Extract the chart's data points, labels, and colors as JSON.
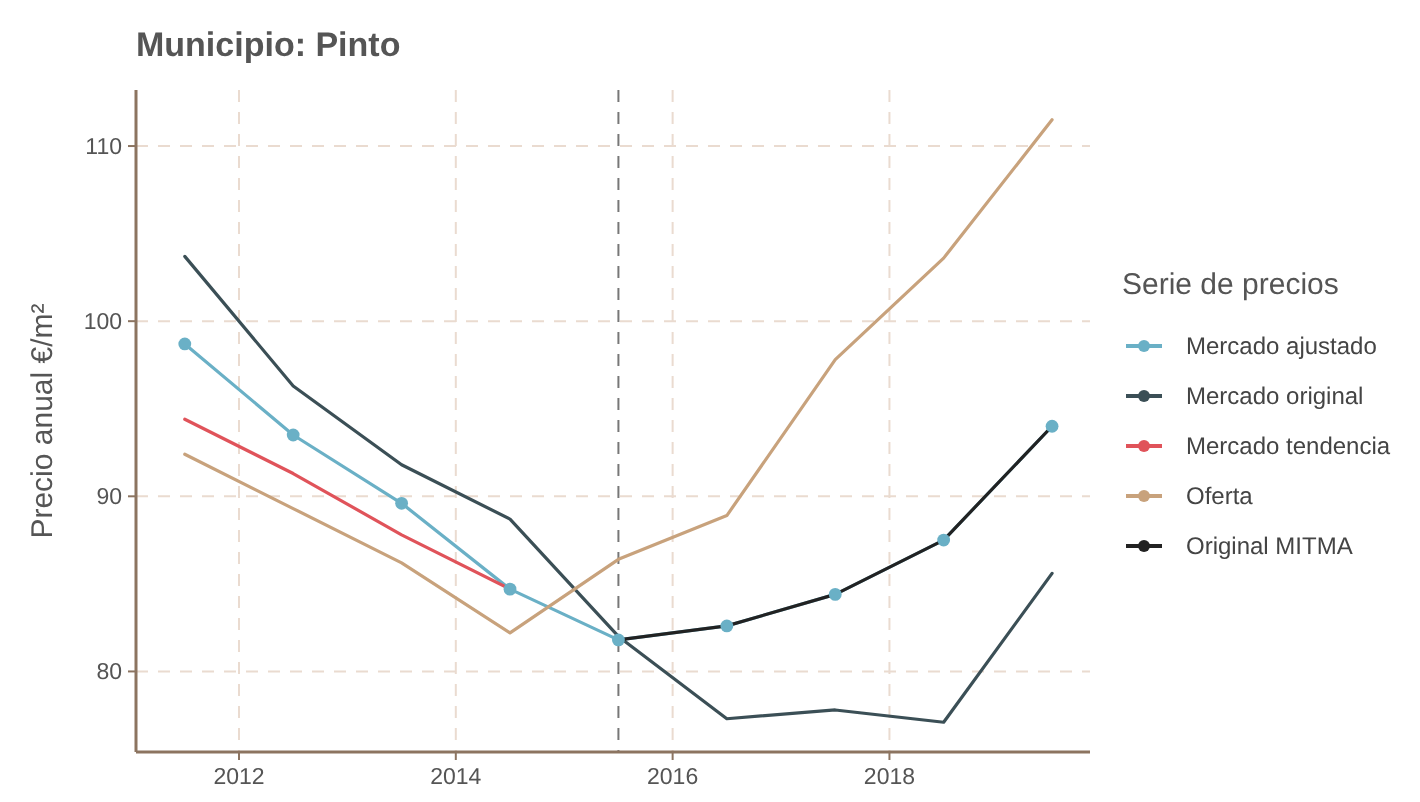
{
  "chart_data": {
    "type": "line",
    "title": "Municipio: Pinto",
    "ylabel": "Precio anual €/m²",
    "legend_title": "Serie de precios",
    "legend": "right",
    "grid": true,
    "x": [
      2011.5,
      2012.5,
      2013.5,
      2014.5,
      2015.5,
      2016.5,
      2017.5,
      2018.5,
      2019.5
    ],
    "xlim": [
      2011.05,
      2019.85
    ],
    "xticks": [
      2012,
      2014,
      2016,
      2018
    ],
    "ylim": [
      75.4,
      113.2
    ],
    "yticks": [
      80,
      90,
      100,
      110
    ],
    "ref_lines": [
      {
        "axis": "x",
        "value": 2015.5,
        "line_style": "dashed",
        "color": "#777777"
      }
    ],
    "series": [
      {
        "name": "Mercado ajustado",
        "color": "#6ab0c6",
        "marker": "circle",
        "values": [
          98.7,
          93.5,
          89.6,
          84.7,
          81.8,
          82.6,
          84.4,
          87.5,
          94.0
        ]
      },
      {
        "name": "Mercado original",
        "color": "#3b4f56",
        "marker": "none",
        "values": [
          103.7,
          96.3,
          91.8,
          88.7,
          82.0,
          77.3,
          77.8,
          77.1,
          85.6
        ]
      },
      {
        "name": "Mercado tendencia",
        "color": "#e0535a",
        "marker": "none",
        "values": [
          94.4,
          91.3,
          87.8,
          84.7,
          null,
          null,
          null,
          null,
          null
        ]
      },
      {
        "name": "Oferta",
        "color": "#c8a27c",
        "marker": "none",
        "values": [
          92.4,
          89.3,
          86.2,
          82.2,
          86.4,
          88.9,
          97.8,
          103.6,
          111.5
        ]
      },
      {
        "name": "Original MITMA",
        "color": "#222222",
        "marker": "none",
        "values": [
          null,
          null,
          null,
          null,
          81.8,
          82.6,
          84.4,
          87.5,
          94.0
        ]
      }
    ]
  }
}
